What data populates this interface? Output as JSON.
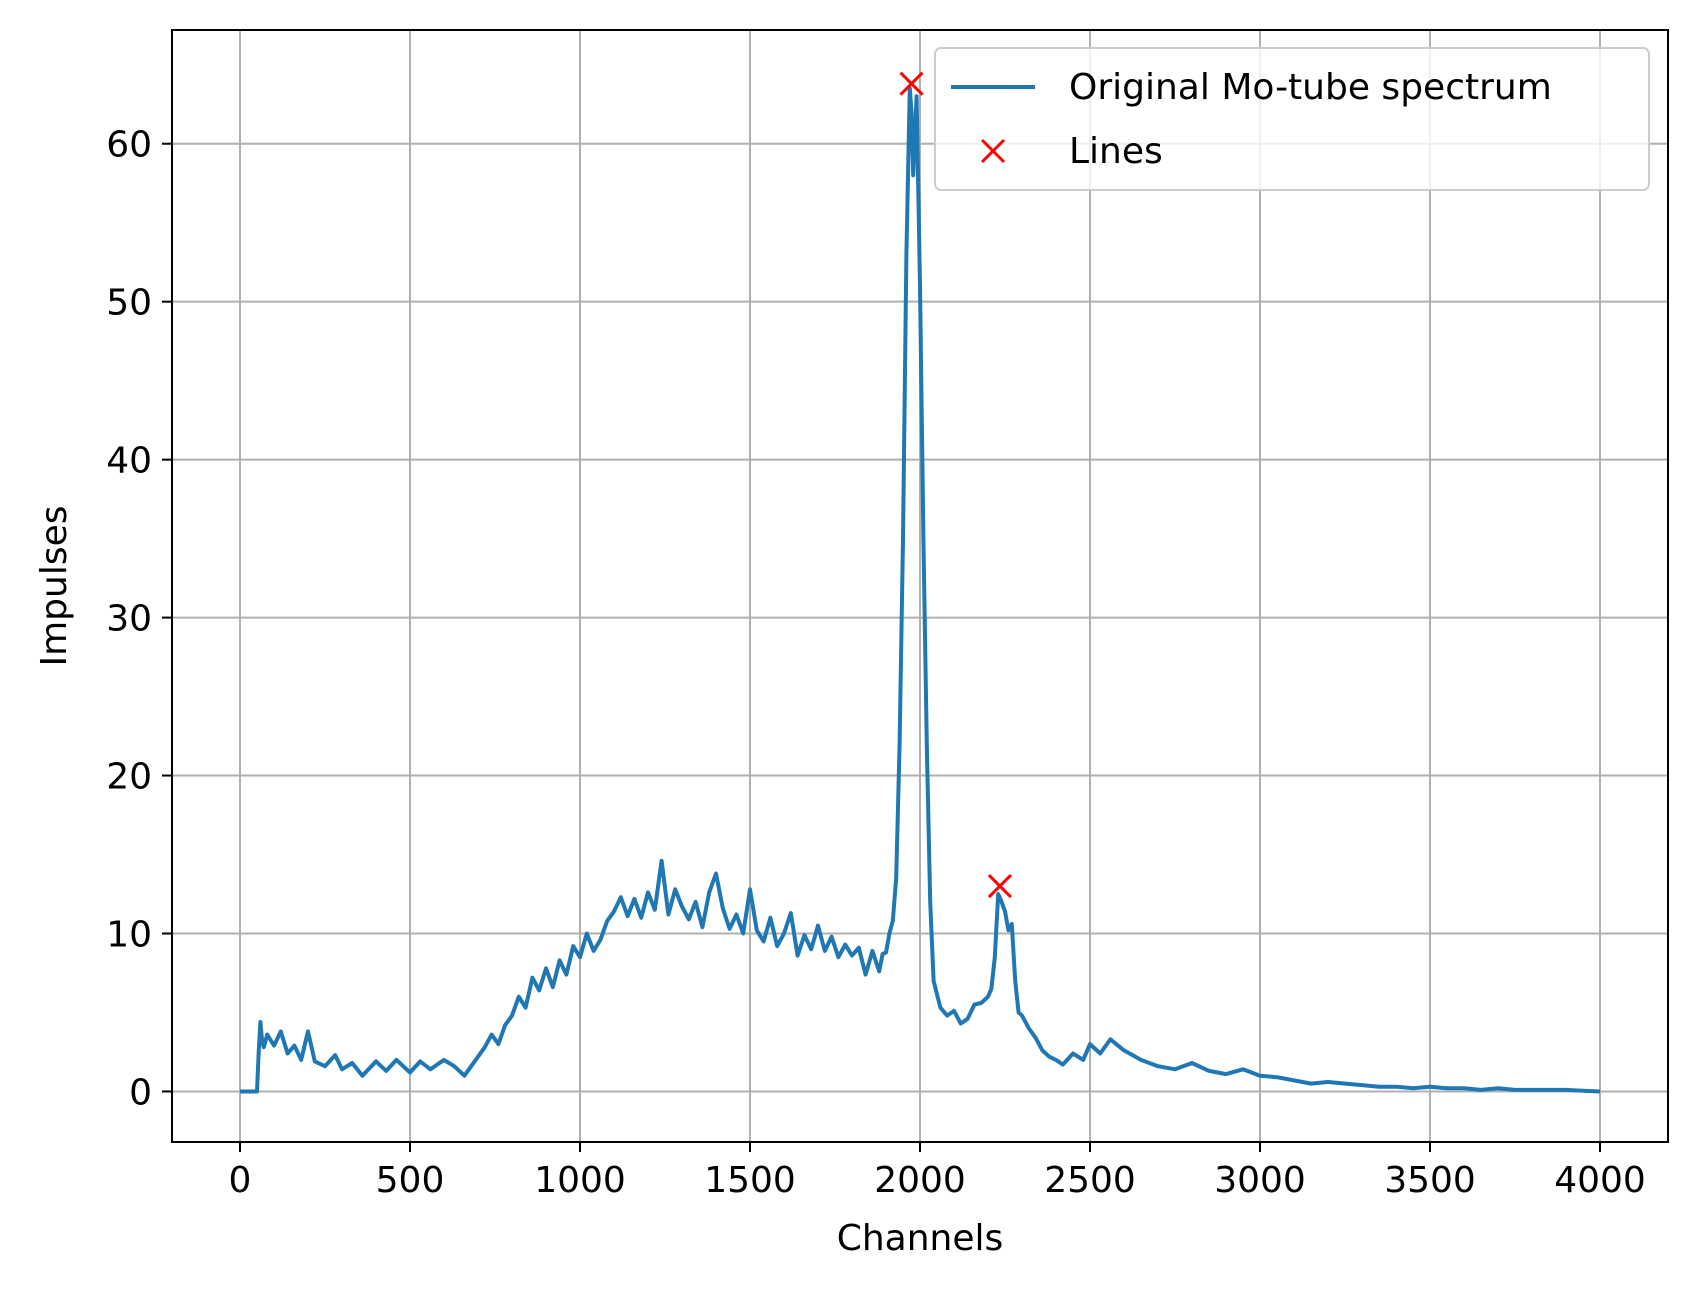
{
  "chart_data": {
    "type": "line",
    "xlabel": "Channels",
    "ylabel": "Impulses",
    "xlim": [
      -200,
      4200
    ],
    "ylim": [
      -3.2,
      67.2
    ],
    "grid": true,
    "legend_position": "top-right",
    "xticks": [
      0,
      500,
      1000,
      1500,
      2000,
      2500,
      3000,
      3500,
      4000
    ],
    "yticks": [
      0,
      10,
      20,
      30,
      40,
      50,
      60
    ],
    "colors": {
      "line": "#1f77b4",
      "marker": "#ff0000",
      "grid": "#b0b0b0"
    },
    "series": [
      {
        "name": "Original Mo-tube spectrum",
        "kind": "line",
        "x": [
          0,
          20,
          40,
          50,
          55,
          60,
          65,
          70,
          80,
          100,
          120,
          140,
          160,
          180,
          200,
          220,
          250,
          280,
          300,
          330,
          360,
          400,
          430,
          460,
          500,
          530,
          560,
          600,
          630,
          660,
          700,
          720,
          740,
          760,
          780,
          800,
          820,
          840,
          860,
          880,
          900,
          920,
          940,
          960,
          980,
          1000,
          1020,
          1040,
          1060,
          1080,
          1100,
          1120,
          1140,
          1160,
          1180,
          1200,
          1220,
          1240,
          1260,
          1280,
          1300,
          1320,
          1340,
          1360,
          1380,
          1400,
          1420,
          1440,
          1460,
          1480,
          1500,
          1520,
          1540,
          1560,
          1580,
          1600,
          1620,
          1640,
          1660,
          1680,
          1700,
          1720,
          1740,
          1760,
          1780,
          1800,
          1820,
          1840,
          1860,
          1880,
          1890,
          1900,
          1910,
          1920,
          1930,
          1940,
          1950,
          1960,
          1970,
          1975,
          1980,
          1990,
          2000,
          2010,
          2020,
          2030,
          2040,
          2060,
          2080,
          2100,
          2120,
          2140,
          2160,
          2180,
          2200,
          2210,
          2220,
          2230,
          2240,
          2250,
          2260,
          2270,
          2280,
          2290,
          2300,
          2320,
          2340,
          2360,
          2380,
          2400,
          2420,
          2450,
          2480,
          2500,
          2530,
          2560,
          2600,
          2650,
          2700,
          2750,
          2800,
          2850,
          2900,
          2950,
          3000,
          3050,
          3100,
          3150,
          3200,
          3250,
          3300,
          3350,
          3400,
          3450,
          3500,
          3550,
          3600,
          3650,
          3700,
          3750,
          3800,
          3850,
          3900,
          3950,
          4000
        ],
        "y": [
          0,
          0,
          0,
          0,
          2.5,
          4.4,
          3.2,
          2.8,
          3.6,
          2.9,
          3.8,
          2.4,
          2.9,
          2.0,
          3.8,
          1.9,
          1.6,
          2.3,
          1.4,
          1.8,
          1.0,
          1.9,
          1.3,
          2.0,
          1.2,
          1.9,
          1.4,
          2.0,
          1.6,
          1.0,
          2.2,
          2.8,
          3.6,
          3.0,
          4.2,
          4.8,
          6.0,
          5.3,
          7.2,
          6.4,
          7.8,
          6.6,
          8.3,
          7.4,
          9.2,
          8.5,
          10.0,
          8.9,
          9.6,
          10.8,
          11.4,
          12.3,
          11.1,
          12.2,
          11.0,
          12.6,
          11.5,
          14.6,
          11.2,
          12.8,
          11.7,
          10.9,
          12.0,
          10.4,
          12.6,
          13.8,
          11.6,
          10.3,
          11.2,
          10.0,
          12.8,
          10.2,
          9.5,
          11.0,
          9.2,
          10.0,
          11.3,
          8.6,
          9.9,
          9.0,
          10.5,
          8.9,
          9.8,
          8.5,
          9.3,
          8.6,
          9.1,
          7.4,
          8.9,
          7.6,
          8.7,
          8.8,
          10.0,
          10.8,
          13.5,
          22.0,
          35.0,
          53.0,
          63.5,
          62.0,
          58.0,
          63.0,
          51.0,
          35.0,
          22.0,
          12.0,
          7.0,
          5.3,
          4.8,
          5.1,
          4.3,
          4.6,
          5.5,
          5.6,
          6.0,
          6.5,
          8.5,
          12.5,
          12.0,
          11.4,
          10.2,
          10.6,
          7.0,
          5.0,
          4.8,
          4.0,
          3.4,
          2.6,
          2.2,
          2.0,
          1.7,
          2.4,
          2.0,
          3.0,
          2.4,
          3.3,
          2.6,
          2.0,
          1.6,
          1.4,
          1.8,
          1.3,
          1.1,
          1.4,
          1.0,
          0.9,
          0.7,
          0.5,
          0.6,
          0.5,
          0.4,
          0.3,
          0.3,
          0.2,
          0.3,
          0.2,
          0.2,
          0.1,
          0.2,
          0.1,
          0.1,
          0.1,
          0.1,
          0.05,
          0.0
        ]
      },
      {
        "name": "Lines",
        "kind": "marker",
        "x": [
          1975,
          2235
        ],
        "y": [
          63.8,
          13.0
        ]
      }
    ]
  }
}
